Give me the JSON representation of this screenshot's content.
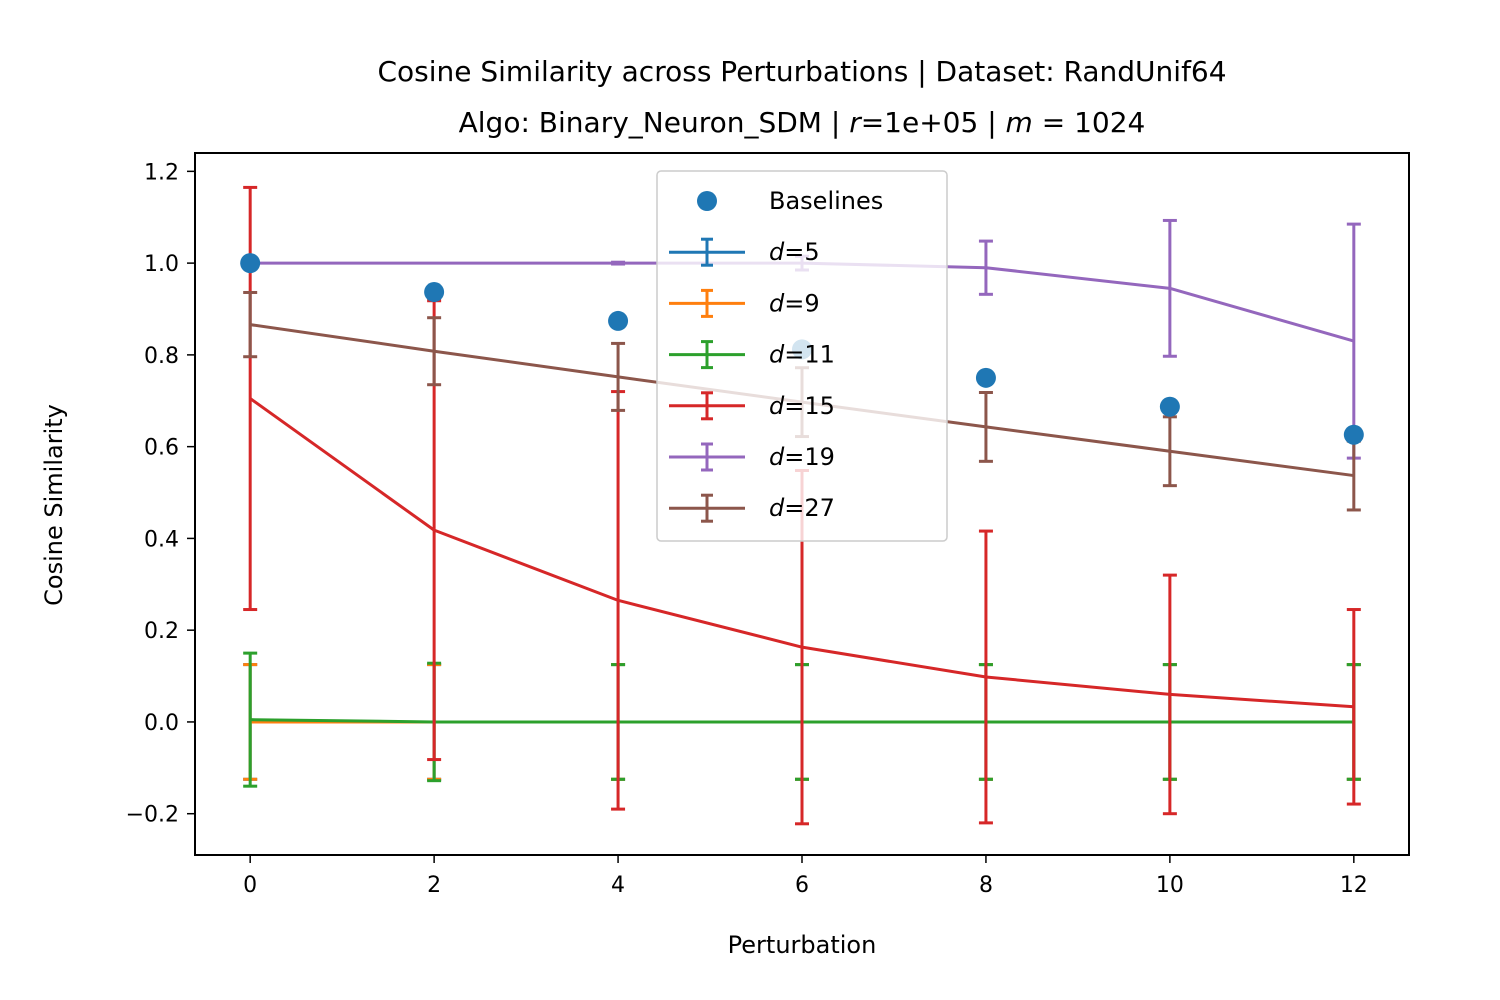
{
  "chart_data": {
    "type": "line",
    "title_line1": "Cosine Similarity across Perturbations | Dataset: RandUnif64",
    "title_line2": {
      "prefix": "Algo: Binary_Neuron_SDM | ",
      "r_symbol": "r",
      "r_value": "=1e+05 | ",
      "m_symbol": "m",
      "m_value": " = 1024"
    },
    "xlabel": "Perturbation",
    "ylabel": "Cosine Similarity",
    "xlim": [
      -0.6,
      12.6
    ],
    "ylim": [
      -0.29,
      1.24
    ],
    "xticks": [
      0,
      2,
      4,
      6,
      8,
      10,
      12
    ],
    "xtick_labels": [
      "0",
      "2",
      "4",
      "6",
      "8",
      "10",
      "12"
    ],
    "yticks": [
      -0.2,
      0.0,
      0.2,
      0.4,
      0.6,
      0.8,
      1.0,
      1.2
    ],
    "ytick_labels": [
      "−0.2",
      "0.0",
      "0.2",
      "0.4",
      "0.6",
      "0.8",
      "1.0",
      "1.2"
    ],
    "grid": false,
    "legend_position": "upper-center",
    "x": [
      0,
      2,
      4,
      6,
      8,
      10,
      12
    ],
    "baselines": {
      "name": "Baselines",
      "color": "#1f77b4",
      "y": [
        1.0,
        0.937,
        0.874,
        0.812,
        0.75,
        0.687,
        0.626
      ]
    },
    "series": [
      {
        "name": "d=5",
        "symbol": "d",
        "suffix": "=5",
        "color": "#1f77b4",
        "y": [
          0.0,
          0.0,
          0.0,
          0.0,
          0.0,
          0.0,
          0.0
        ],
        "err": [
          0.125,
          0.125,
          0.125,
          0.125,
          0.125,
          0.125,
          0.125
        ]
      },
      {
        "name": "d=9",
        "symbol": "d",
        "suffix": "=9",
        "color": "#ff7f0e",
        "y": [
          0.0,
          0.0,
          0.0,
          0.0,
          0.0,
          0.0,
          0.0
        ],
        "err": [
          0.125,
          0.125,
          0.125,
          0.125,
          0.125,
          0.125,
          0.125
        ]
      },
      {
        "name": "d=11",
        "symbol": "d",
        "suffix": "=11",
        "color": "#2ca02c",
        "y": [
          0.005,
          0.0,
          0.0,
          0.0,
          0.0,
          0.0,
          0.0
        ],
        "err": [
          0.145,
          0.128,
          0.125,
          0.125,
          0.125,
          0.125,
          0.125
        ]
      },
      {
        "name": "d=15",
        "symbol": "d",
        "suffix": "=15",
        "color": "#d62728",
        "y": [
          0.705,
          0.418,
          0.265,
          0.163,
          0.098,
          0.06,
          0.033
        ],
        "err": [
          0.46,
          0.5,
          0.455,
          0.385,
          0.318,
          0.26,
          0.212
        ]
      },
      {
        "name": "d=19",
        "symbol": "d",
        "suffix": "=19",
        "color": "#9467bd",
        "y": [
          1.0,
          1.0,
          1.0,
          1.0,
          0.99,
          0.945,
          0.83
        ],
        "err": [
          0.0,
          0.0,
          0.002,
          0.015,
          0.058,
          0.148,
          0.255
        ]
      },
      {
        "name": "d=27",
        "symbol": "d",
        "suffix": "=27",
        "color": "#8c564b",
        "y": [
          0.866,
          0.808,
          0.752,
          0.697,
          0.643,
          0.59,
          0.537
        ],
        "err": [
          0.07,
          0.073,
          0.073,
          0.075,
          0.075,
          0.075,
          0.075
        ]
      }
    ]
  }
}
